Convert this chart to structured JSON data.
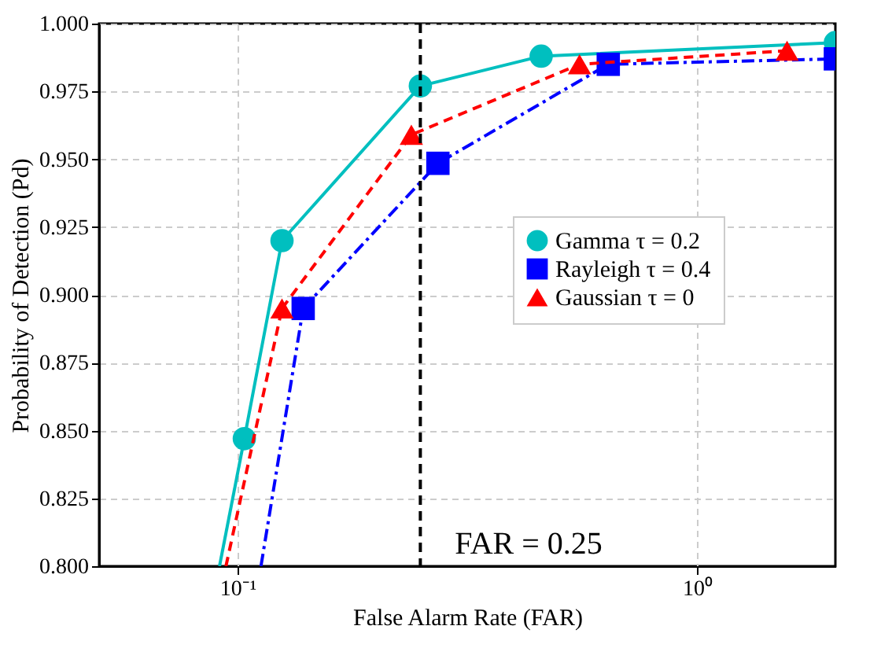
{
  "chart_data": {
    "type": "line",
    "xlabel": "False Alarm Rate (FAR)",
    "ylabel": "Probability of Detection (Pd)",
    "log": "x",
    "xlim": [
      0.05,
      2
    ],
    "ylim": [
      0.8,
      1.0
    ],
    "xticks": [
      {
        "value": 0.1,
        "label": "10⁻¹"
      },
      {
        "value": 1,
        "label": "10⁰"
      }
    ],
    "yticks": [
      {
        "value": 0.8,
        "label": "0.800"
      },
      {
        "value": 0.825,
        "label": "0.825"
      },
      {
        "value": 0.85,
        "label": "0.850"
      },
      {
        "value": 0.875,
        "label": "0.875"
      },
      {
        "value": 0.9,
        "label": "0.900"
      },
      {
        "value": 0.925,
        "label": "0.925"
      },
      {
        "value": 0.95,
        "label": "0.950"
      },
      {
        "value": 0.975,
        "label": "0.975"
      },
      {
        "value": 1.0,
        "label": "1.000"
      }
    ],
    "grid": true,
    "legend": "right",
    "series": [
      {
        "name": "Gamma τ = 0.2",
        "color": "#00bfbf",
        "marker": "circle",
        "line_style": "solid",
        "x": [
          0.1035,
          0.125,
          0.25,
          0.458,
          2.0
        ],
        "values": [
          0.847,
          0.92,
          0.977,
          0.988,
          0.993
        ]
      },
      {
        "name": "Rayleigh τ = 0.4",
        "color": "#0000ff",
        "marker": "square",
        "line_style": "dashdot",
        "x": [
          0.139,
          0.273,
          0.641,
          2.0
        ],
        "values": [
          0.895,
          0.9485,
          0.985,
          0.987
        ]
      },
      {
        "name": "Gaussian τ = 0",
        "color": "#ff0000",
        "marker": "triangle",
        "line_style": "dashed",
        "x": [
          0.125,
          0.239,
          0.555,
          1.57
        ],
        "values": [
          0.895,
          0.959,
          0.985,
          0.99
        ]
      },
      {
        "type": "line",
        "color": "#00bfbf",
        "marker": "none",
        "line_style": "solid",
        "x": [
          0.0914,
          0.1035
        ],
        "values": [
          0.8,
          0.847
        ]
      },
      {
        "type": "line",
        "color": "#0000ff",
        "marker": "none",
        "line_style": "dashdot",
        "x": [
          0.1125,
          0.139
        ],
        "values": [
          0.8,
          0.895
        ]
      },
      {
        "type": "line",
        "color": "#ff0000",
        "marker": "none",
        "line_style": "dashed",
        "x": [
          0.0944,
          0.125
        ],
        "values": [
          0.8,
          0.895
        ]
      }
    ],
    "ref_lines": [
      {
        "axis": "x",
        "value": 0.25,
        "label": "FAR = 0.25",
        "color": "#000000",
        "line_style": "dashed"
      }
    ]
  }
}
